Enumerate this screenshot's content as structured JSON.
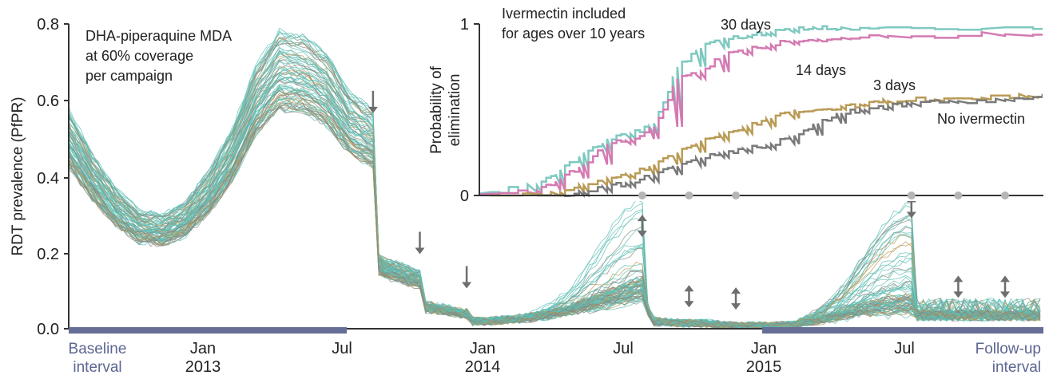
{
  "chart_data": [
    {
      "type": "line",
      "ylabel": "RDT prevalence (PfPR)",
      "ylim": [
        0,
        0.8
      ],
      "y_ticks": [
        "0.0",
        "0.2",
        "0.4",
        "0.6",
        "0.8"
      ],
      "x_ticks": [
        {
          "label": "Jan",
          "sub": "2013"
        },
        {
          "label": "Jul",
          "sub": ""
        },
        {
          "label": "Jan",
          "sub": "2014"
        },
        {
          "label": "Jul",
          "sub": ""
        },
        {
          "label": "Jan",
          "sub": "2015"
        },
        {
          "label": "Jul",
          "sub": ""
        }
      ],
      "annotation": [
        "DHA-piperaquine MDA",
        "at 60% coverage",
        "per campaign"
      ],
      "baseline_interval": [
        "Baseline",
        "interval"
      ],
      "followup_interval": [
        "Follow-up",
        "interval"
      ],
      "colors": {
        "ensemble": "#5fbfb4",
        "traces": "#8a8a80",
        "tan": "#b89a55",
        "arrow": "#6e6e6e",
        "interval_bar": "#666e96"
      },
      "mean_trajectory": {
        "x_months": [
          0,
          1,
          2,
          3,
          4,
          5,
          6,
          7,
          8,
          9,
          10,
          11,
          12,
          13,
          13.05,
          13.5,
          14,
          14.5,
          15,
          15.05,
          16,
          17,
          17.05,
          18,
          19,
          20,
          21,
          22,
          23,
          24.5,
          25,
          26,
          27,
          28,
          29,
          30,
          31,
          32,
          33,
          34
        ],
        "y": [
          0.5,
          0.4,
          0.32,
          0.27,
          0.26,
          0.29,
          0.36,
          0.46,
          0.6,
          0.68,
          0.67,
          0.63,
          0.54,
          0.5,
          0.18,
          0.16,
          0.15,
          0.14,
          0.13,
          0.06,
          0.05,
          0.04,
          0.02,
          0.02,
          0.025,
          0.03,
          0.04,
          0.05,
          0.06,
          0.08,
          0.02,
          0.015,
          0.015,
          0.01,
          0.008,
          0.008,
          0.01,
          0.02,
          0.03,
          0.04
        ]
      },
      "outbreak_peaks": [
        {
          "x_month": 24.5,
          "y": 0.27
        },
        {
          "x_month": 36,
          "y": 0.29
        }
      ],
      "campaign_markers": {
        "down_arrows": [
          13,
          15,
          17
        ],
        "double_arrows": [
          24.5,
          26.5,
          28.5,
          36,
          38,
          40
        ]
      }
    },
    {
      "type": "line",
      "title": [
        "Ivermectin included",
        "for ages over 10 years"
      ],
      "ylabel": [
        "Probability of",
        "elimination"
      ],
      "ylim": [
        0,
        1
      ],
      "y_ticks": [
        "0",
        "1"
      ],
      "series": [
        {
          "name": "30 days",
          "color": "#7fc9c0",
          "x_months": [
            18,
            20,
            21,
            22,
            23,
            24,
            25,
            26,
            27,
            28,
            29,
            30,
            31,
            32,
            33,
            35,
            40,
            46
          ],
          "y": [
            0.02,
            0.06,
            0.15,
            0.25,
            0.33,
            0.36,
            0.42,
            0.75,
            0.86,
            0.92,
            0.93,
            0.95,
            0.97,
            0.97,
            0.98,
            0.98,
            0.98,
            0.98
          ]
        },
        {
          "name": "14 days",
          "color": "#d47ab2",
          "x_months": [
            18,
            20,
            21,
            22,
            23,
            24,
            25,
            26,
            27,
            28,
            29,
            30,
            31,
            32,
            33,
            35,
            40,
            46
          ],
          "y": [
            0.01,
            0.03,
            0.1,
            0.18,
            0.3,
            0.33,
            0.4,
            0.68,
            0.72,
            0.82,
            0.85,
            0.88,
            0.9,
            0.91,
            0.92,
            0.93,
            0.94,
            0.94
          ]
        },
        {
          "name": "3 days",
          "color": "#b99b56",
          "x_months": [
            19,
            21,
            22,
            23,
            24,
            25,
            26,
            27,
            28,
            29,
            30,
            31,
            32,
            33,
            34,
            35,
            37,
            39,
            41,
            43,
            44,
            46
          ],
          "y": [
            0.0,
            0.02,
            0.06,
            0.1,
            0.12,
            0.18,
            0.25,
            0.32,
            0.36,
            0.4,
            0.45,
            0.5,
            0.5,
            0.52,
            0.53,
            0.55,
            0.56,
            0.57,
            0.58,
            0.62,
            0.68,
            0.65
          ]
        },
        {
          "name": "No ivermectin",
          "color": "#7a7a7a",
          "x_months": [
            21,
            22,
            23,
            24,
            25,
            26,
            27,
            28,
            29,
            30,
            31,
            32,
            33,
            34,
            35,
            36,
            38,
            40,
            42,
            44,
            46
          ],
          "y": [
            0.0,
            0.02,
            0.05,
            0.08,
            0.12,
            0.17,
            0.22,
            0.25,
            0.27,
            0.3,
            0.35,
            0.42,
            0.48,
            0.5,
            0.52,
            0.54,
            0.55,
            0.56,
            0.58,
            0.6,
            0.58
          ]
        }
      ]
    }
  ]
}
